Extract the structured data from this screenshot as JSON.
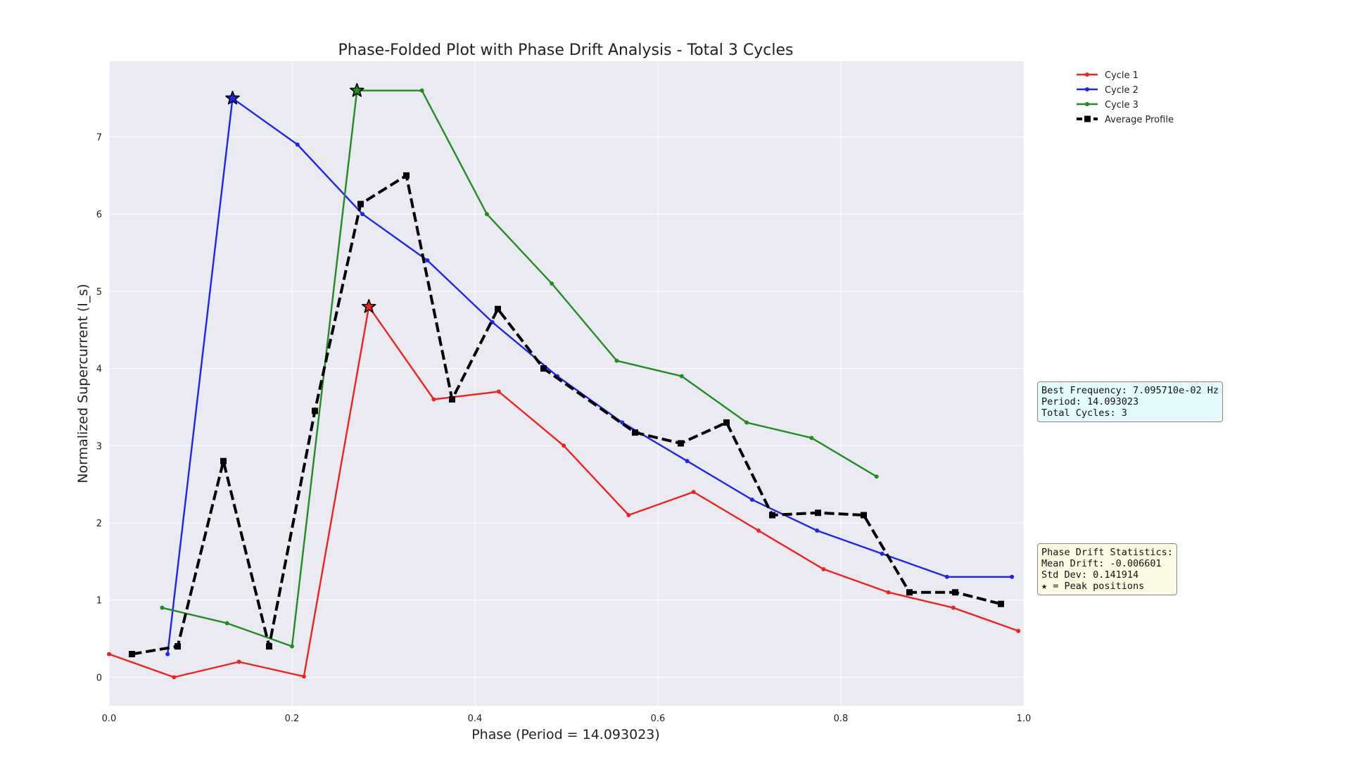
{
  "chart_data": {
    "type": "line",
    "title": "Phase-Folded Plot with Phase Drift Analysis - Total 3 Cycles",
    "xlabel": "Phase (Period = 14.093023)",
    "ylabel": "Normalized Supercurrent (I_s)",
    "xlim": [
      0.0,
      1.0
    ],
    "ylim": [
      -0.37,
      7.98
    ],
    "x_ticks": [
      "0.0",
      "0.2",
      "0.4",
      "0.6",
      "0.8",
      "1.0"
    ],
    "y_ticks": [
      "0",
      "1",
      "2",
      "3",
      "4",
      "5",
      "6",
      "7"
    ],
    "grid": true,
    "legend_position": "outside-top-right",
    "series": [
      {
        "name": "Cycle 1",
        "color": "#ee2222",
        "marker": "dot",
        "x": [
          0.0,
          0.071,
          0.142,
          0.213,
          0.284,
          0.355,
          0.426,
          0.497,
          0.568,
          0.639,
          0.71,
          0.781,
          0.852,
          0.923,
          0.994
        ],
        "y": [
          0.3,
          0.0,
          0.2,
          0.01,
          4.8,
          3.6,
          3.7,
          3.0,
          2.1,
          2.4,
          1.9,
          1.4,
          1.1,
          0.9,
          0.6
        ]
      },
      {
        "name": "Cycle 2",
        "color": "#2222ee",
        "marker": "dot",
        "x": [
          0.064,
          0.135,
          0.206,
          0.277,
          0.348,
          0.419,
          0.49,
          0.561,
          0.632,
          0.703,
          0.774,
          0.845,
          0.916,
          0.987
        ],
        "y": [
          0.3,
          7.5,
          6.9,
          6.0,
          5.4,
          4.6,
          3.9,
          3.3,
          2.8,
          2.3,
          1.9,
          1.6,
          1.3,
          1.3
        ]
      },
      {
        "name": "Cycle 3",
        "color": "#228b22",
        "marker": "dot",
        "x": [
          0.058,
          0.129,
          0.2,
          0.271,
          0.342,
          0.413,
          0.484,
          0.555,
          0.626,
          0.697,
          0.768,
          0.839
        ],
        "y": [
          0.9,
          0.7,
          0.4,
          7.6,
          7.6,
          6.0,
          5.1,
          4.1,
          3.9,
          3.3,
          3.1,
          2.6
        ]
      },
      {
        "name": "Average Profile",
        "color": "#000000",
        "marker": "square",
        "dashed": true,
        "x": [
          0.025,
          0.075,
          0.125,
          0.175,
          0.225,
          0.275,
          0.325,
          0.375,
          0.425,
          0.475,
          0.575,
          0.625,
          0.675,
          0.725,
          0.775,
          0.825,
          0.875,
          0.925,
          0.975
        ],
        "y": [
          0.3,
          0.4,
          2.8,
          0.4,
          3.45,
          6.13,
          6.5,
          3.6,
          4.77,
          4.0,
          3.17,
          3.03,
          3.3,
          2.1,
          2.13,
          2.1,
          1.1,
          1.1,
          0.95
        ]
      }
    ],
    "peaks": [
      {
        "series": "Cycle 1",
        "x": 0.284,
        "y": 4.8
      },
      {
        "series": "Cycle 2",
        "x": 0.135,
        "y": 7.5
      },
      {
        "series": "Cycle 3",
        "x": 0.271,
        "y": 7.6
      }
    ]
  },
  "info_box": {
    "lines": [
      "Best Frequency: 7.095710e-02 Hz",
      "Period: 14.093023",
      "Total Cycles: 3"
    ],
    "background": "#e4fbfb"
  },
  "stats_box": {
    "lines": [
      "Phase Drift Statistics:",
      "Mean Drift: -0.006601",
      "Std Dev: 0.141914",
      "★ = Peak positions"
    ],
    "background": "#fbfbe4"
  }
}
